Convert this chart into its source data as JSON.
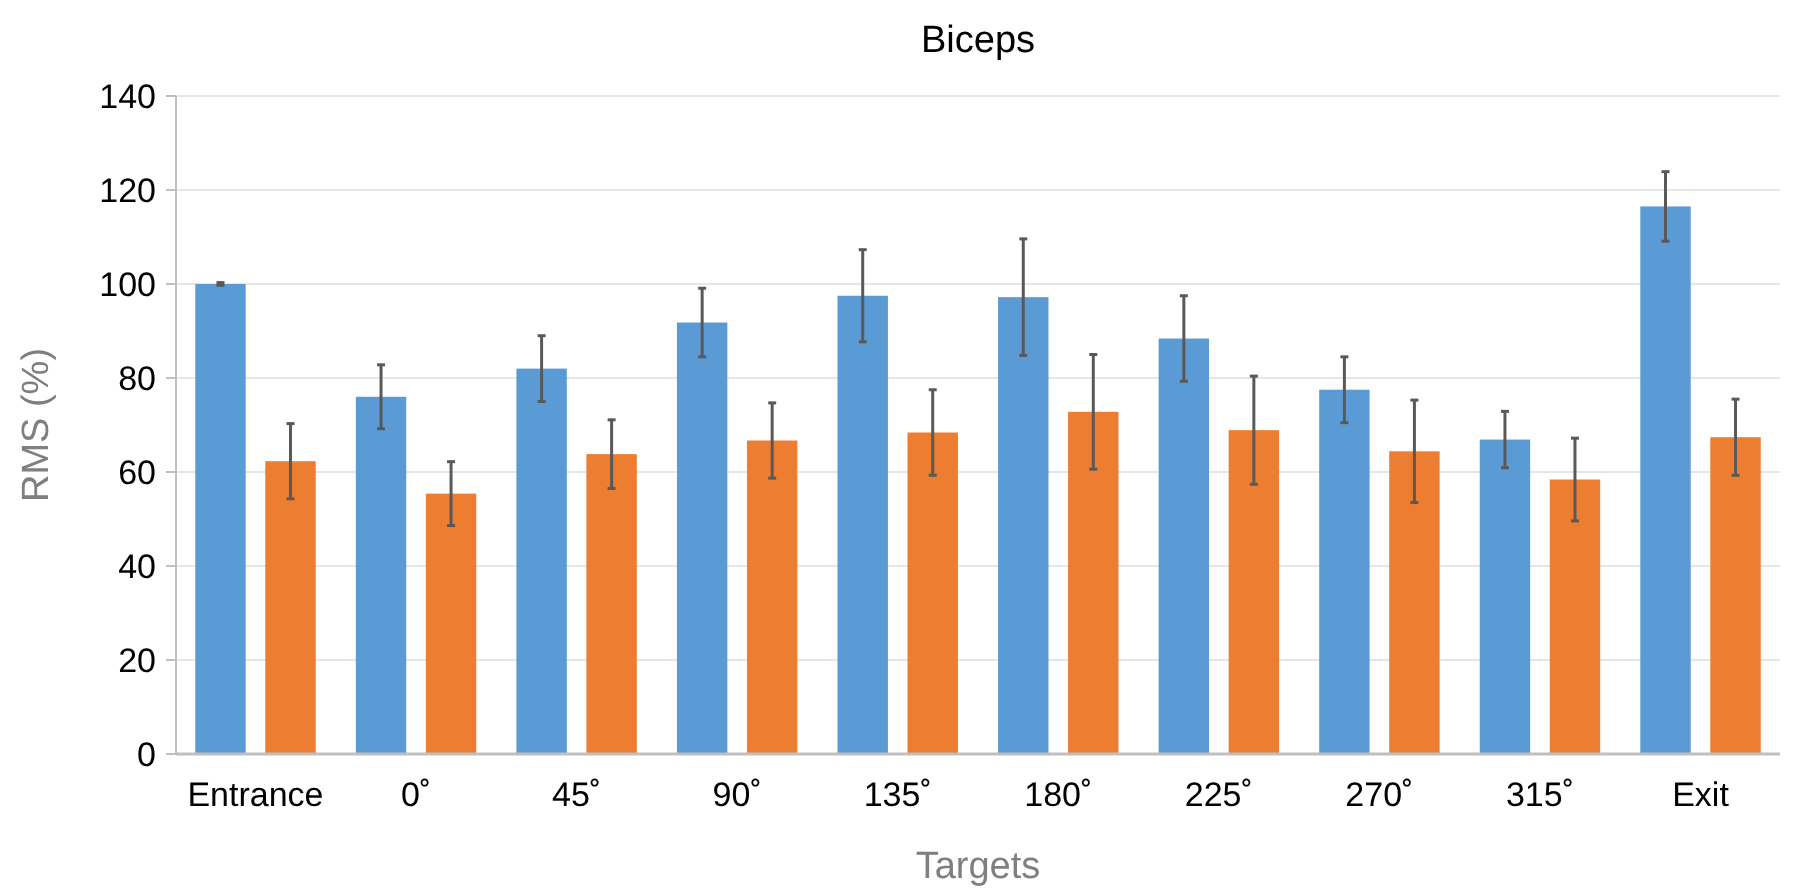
{
  "chart_data": {
    "type": "bar",
    "title": "Biceps",
    "xlabel": "Targets",
    "ylabel": "RMS (%)",
    "categories": [
      "Entrance",
      "0˚",
      "45˚",
      "90˚",
      "135˚",
      "180˚",
      "225˚",
      "270˚",
      "315˚",
      "Exit"
    ],
    "series": [
      {
        "color": "#5b9bd5",
        "values": [
          100,
          76,
          82,
          91.8,
          97.5,
          97.2,
          88.4,
          77.5,
          66.9,
          116.5
        ],
        "errors": [
          0.3,
          6.8,
          7,
          7.3,
          9.8,
          12.4,
          9.1,
          7,
          6,
          7.4
        ]
      },
      {
        "color": "#ed7d31",
        "values": [
          62.3,
          55.4,
          63.8,
          66.7,
          68.4,
          72.8,
          68.9,
          64.4,
          58.4,
          67.4
        ],
        "errors": [
          8,
          6.8,
          7.3,
          8,
          9.1,
          12.2,
          11.5,
          10.9,
          8.8,
          8.1
        ]
      }
    ],
    "ylim": [
      0,
      140
    ],
    "yticks": [
      0,
      20,
      40,
      60,
      80,
      100,
      120,
      140
    ],
    "grid": "y"
  }
}
